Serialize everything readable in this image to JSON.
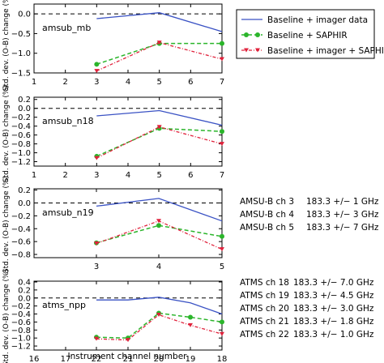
{
  "legend": {
    "entries": [
      {
        "label": "Baseline + imager data",
        "color": "#3a52c4",
        "marker": "none",
        "dash": "solid"
      },
      {
        "label": "Baseline + SAPHIR",
        "color": "#2bb52b",
        "marker": "circle",
        "dash": "dashed"
      },
      {
        "label": "Baseline + imager + SAPHIR",
        "color": "#e0213b",
        "marker": "triangle-down",
        "dash": "dashdot"
      }
    ]
  },
  "xlabel": "Instrument channel number",
  "ylabel": "Std. dev. (O-B) change (%)",
  "notes": [
    {
      "id": "amsub",
      "rows": [
        [
          "AMSU-B ch 3",
          "183.3 +/− 1 GHz"
        ],
        [
          "AMSU-B ch 4",
          "183.3 +/− 3 GHz"
        ],
        [
          "AMSU-B ch 5",
          "183.3 +/− 7 GHz"
        ]
      ]
    },
    {
      "id": "atms",
      "rows": [
        [
          "ATMS ch 18",
          "183.3 +/− 7.0 GHz"
        ],
        [
          "ATMS ch 19",
          "183.3 +/− 4.5 GHz"
        ],
        [
          "ATMS ch 20",
          "183.3 +/− 3.0 GHz"
        ],
        [
          "ATMS ch 21",
          "183.3 +/− 1.8 GHz"
        ],
        [
          "ATMS ch 22",
          "183.3 +/− 1.0 GHz"
        ]
      ]
    }
  ],
  "chart_data": [
    {
      "type": "line",
      "panel_label": "amsub_mb",
      "x_ticks": [
        1,
        2,
        3,
        4,
        5,
        6,
        7
      ],
      "x_reversed": false,
      "xlim": [
        1,
        7
      ],
      "ylim": [
        -1.5,
        0.25
      ],
      "y_ticks": [
        0.0,
        -0.5,
        -1.0,
        -1.5
      ],
      "y_tick_labels": [
        "0.0",
        "−0.5",
        "−1.0",
        "−1.5"
      ],
      "zero_line": true,
      "series": [
        {
          "name": "Baseline + imager data",
          "x": [
            3,
            5,
            7
          ],
          "values": [
            -0.12,
            0.03,
            -0.45
          ]
        },
        {
          "name": "Baseline + SAPHIR",
          "x": [
            3,
            5,
            7
          ],
          "values": [
            -1.28,
            -0.75,
            -0.75
          ]
        },
        {
          "name": "Baseline + imager + SAPHIR",
          "x": [
            3,
            5,
            7
          ],
          "values": [
            -1.45,
            -0.73,
            -1.15
          ]
        }
      ]
    },
    {
      "type": "line",
      "panel_label": "amsub_n18",
      "x_ticks": [
        1,
        2,
        3,
        4,
        5,
        6,
        7
      ],
      "x_reversed": false,
      "xlim": [
        1,
        7
      ],
      "ylim": [
        -1.3,
        0.25
      ],
      "y_ticks": [
        0.2,
        0.0,
        -0.2,
        -0.4,
        -0.6,
        -0.8,
        -1.0,
        -1.2
      ],
      "y_tick_labels": [
        "0.2",
        "0.0",
        "−0.2",
        "−0.4",
        "−0.6",
        "−0.8",
        "−1.0",
        "−1.2"
      ],
      "zero_line": true,
      "series": [
        {
          "name": "Baseline + imager data",
          "x": [
            3,
            5,
            7
          ],
          "values": [
            -0.17,
            -0.05,
            -0.38
          ]
        },
        {
          "name": "Baseline + SAPHIR",
          "x": [
            3,
            5,
            7
          ],
          "values": [
            -1.08,
            -0.45,
            -0.52
          ]
        },
        {
          "name": "Baseline + imager + SAPHIR",
          "x": [
            3,
            5,
            7
          ],
          "values": [
            -1.12,
            -0.42,
            -0.8
          ]
        }
      ]
    },
    {
      "type": "line",
      "panel_label": "amsub_n19",
      "x_ticks": [
        3,
        4,
        5
      ],
      "x_reversed": false,
      "xlim": [
        3,
        5
      ],
      "ylim": [
        -0.85,
        0.22
      ],
      "y_ticks": [
        0.2,
        0.0,
        -0.2,
        -0.4,
        -0.6,
        -0.8
      ],
      "y_tick_labels": [
        "0.2",
        "0.0",
        "−0.2",
        "−0.4",
        "−0.6",
        "−0.8"
      ],
      "zero_line": true,
      "series": [
        {
          "name": "Baseline + imager data",
          "x": [
            3,
            4,
            5
          ],
          "values": [
            -0.05,
            0.07,
            -0.28
          ]
        },
        {
          "name": "Baseline + SAPHIR",
          "x": [
            3,
            4,
            5
          ],
          "values": [
            -0.62,
            -0.35,
            -0.52
          ]
        },
        {
          "name": "Baseline + imager + SAPHIR",
          "x": [
            3,
            4,
            5
          ],
          "values": [
            -0.63,
            -0.28,
            -0.72
          ]
        }
      ]
    },
    {
      "type": "line",
      "panel_label": "atms_npp",
      "x_ticks": [
        16,
        17,
        18,
        19,
        20,
        21,
        22
      ],
      "x_tick_labels": [
        "16",
        "17",
        "18",
        "19",
        "20",
        "21",
        "22"
      ],
      "x_display_order": [
        "16",
        "22",
        "21",
        "20",
        "19",
        "18"
      ],
      "x_reversed": true,
      "xlim": [
        16,
        18
      ],
      "ylim": [
        -1.3,
        0.42
      ],
      "y_ticks": [
        0.4,
        0.2,
        0.0,
        -0.2,
        -0.4,
        -0.6,
        -0.8,
        -1.0,
        -1.2
      ],
      "y_tick_labels": [
        "0.4",
        "0.2",
        "0.0",
        "−0.2",
        "−0.4",
        "−0.6",
        "−0.8",
        "−1.0",
        "−1.2"
      ],
      "zero_line": true,
      "series": [
        {
          "name": "Baseline + imager data",
          "x": [
            "22",
            "21",
            "20",
            "19",
            "18"
          ],
          "values": [
            -0.05,
            -0.05,
            0.02,
            -0.12,
            -0.4
          ]
        },
        {
          "name": "Baseline + SAPHIR",
          "x": [
            "22",
            "21",
            "20",
            "19",
            "18"
          ],
          "values": [
            -0.98,
            -1.0,
            -0.38,
            -0.48,
            -0.6
          ]
        },
        {
          "name": "Baseline + imager + SAPHIR",
          "x": [
            "22",
            "21",
            "20",
            "19",
            "18"
          ],
          "values": [
            -1.02,
            -1.05,
            -0.42,
            -0.68,
            -0.9
          ]
        }
      ]
    }
  ]
}
